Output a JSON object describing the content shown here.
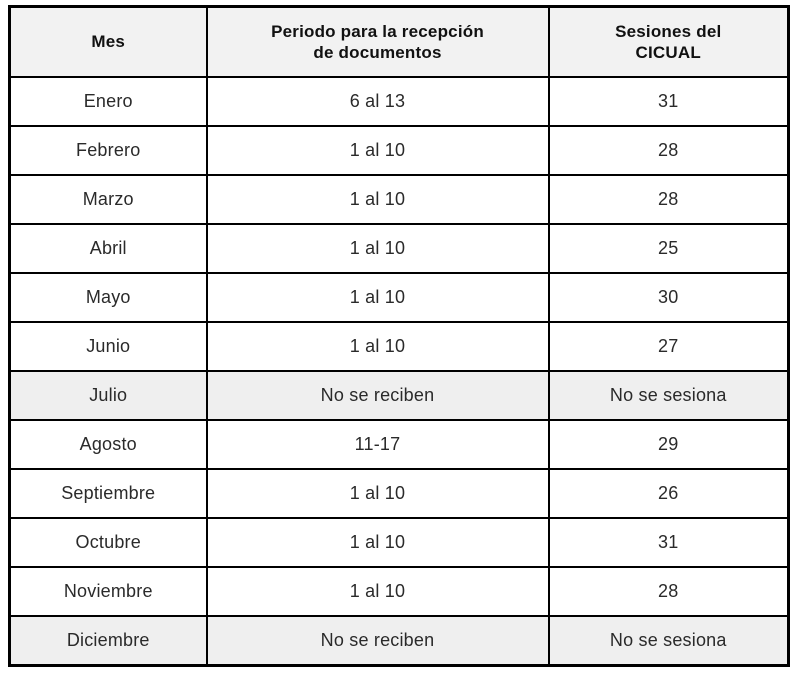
{
  "colors": {
    "page_background": "#ffffff",
    "table_border": "#000000",
    "header_background": "#f2f2f2",
    "shaded_row_background": "#efefef",
    "header_text": "#111111",
    "body_text": "#2a2a2a"
  },
  "table": {
    "columns": [
      {
        "key": "mes",
        "label": "Mes"
      },
      {
        "key": "periodo",
        "label": "Periodo para la  recepción\nde documentos"
      },
      {
        "key": "sesiones",
        "label": "Sesiones del\nCICUAL"
      }
    ],
    "rows": [
      {
        "mes": "Enero",
        "periodo": "6 al 13",
        "sesiones": "31",
        "shaded": false
      },
      {
        "mes": "Febrero",
        "periodo": "1 al 10",
        "sesiones": "28",
        "shaded": false
      },
      {
        "mes": "Marzo",
        "periodo": "1 al 10",
        "sesiones": "28",
        "shaded": false
      },
      {
        "mes": "Abril",
        "periodo": "1 al 10",
        "sesiones": "25",
        "shaded": false
      },
      {
        "mes": "Mayo",
        "periodo": "1 al 10",
        "sesiones": "30",
        "shaded": false
      },
      {
        "mes": "Junio",
        "periodo": "1 al 10",
        "sesiones": "27",
        "shaded": false
      },
      {
        "mes": "Julio",
        "periodo": "No se reciben",
        "sesiones": "No se sesiona",
        "shaded": true
      },
      {
        "mes": "Agosto",
        "periodo": "11-17",
        "sesiones": "29",
        "shaded": false
      },
      {
        "mes": "Septiembre",
        "periodo": "1 al 10",
        "sesiones": "26",
        "shaded": false
      },
      {
        "mes": "Octubre",
        "periodo": "1 al 10",
        "sesiones": "31",
        "shaded": false
      },
      {
        "mes": "Noviembre",
        "periodo": "1 al 10",
        "sesiones": "28",
        "shaded": false
      },
      {
        "mes": "Diciembre",
        "periodo": "No se reciben",
        "sesiones": "No se sesiona",
        "shaded": true
      }
    ]
  }
}
